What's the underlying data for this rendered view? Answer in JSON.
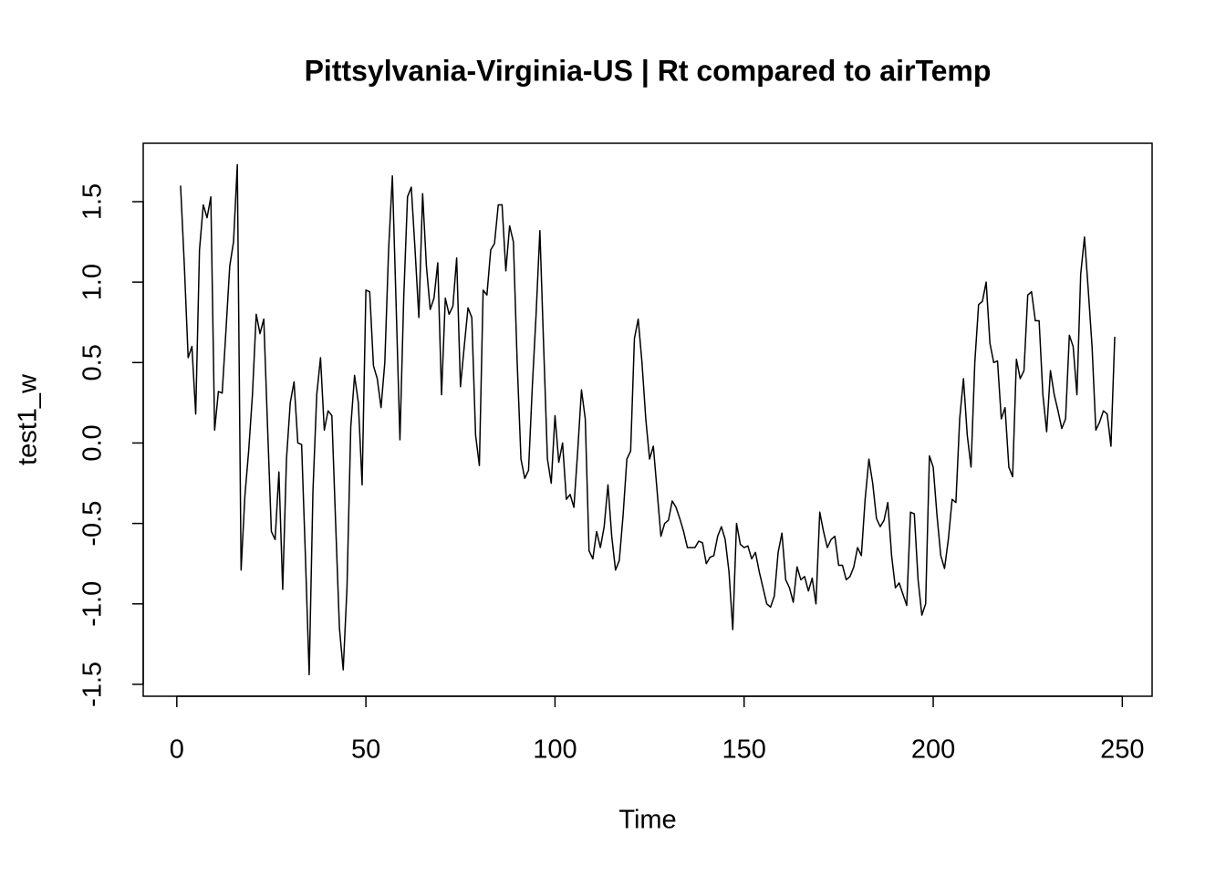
{
  "chart_data": {
    "type": "line",
    "title": "Pittsylvania-Virginia-US | Rt compared to airTemp",
    "x_label": "Time",
    "y_label": "test1_w",
    "x": [
      1,
      2,
      3,
      4,
      5,
      6,
      7,
      8,
      9,
      10,
      11,
      12,
      13,
      14,
      15,
      16,
      17,
      18,
      19,
      20,
      21,
      22,
      23,
      24,
      25,
      26,
      27,
      28,
      29,
      30,
      31,
      32,
      33,
      34,
      35,
      36,
      37,
      38,
      39,
      40,
      41,
      42,
      43,
      44,
      45,
      46,
      47,
      48,
      49,
      50,
      51,
      52,
      53,
      54,
      55,
      56,
      57,
      58,
      59,
      60,
      61,
      62,
      63,
      64,
      65,
      66,
      67,
      68,
      69,
      70,
      71,
      72,
      73,
      74,
      75,
      76,
      77,
      78,
      79,
      80,
      81,
      82,
      83,
      84,
      85,
      86,
      87,
      88,
      89,
      90,
      91,
      92,
      93,
      94,
      95,
      96,
      97,
      98,
      99,
      100,
      101,
      102,
      103,
      104,
      105,
      106,
      107,
      108,
      109,
      110,
      111,
      112,
      113,
      114,
      115,
      116,
      117,
      118,
      119,
      120,
      121,
      122,
      123,
      124,
      125,
      126,
      127,
      128,
      129,
      130,
      131,
      132,
      133,
      134,
      135,
      136,
      137,
      138,
      139,
      140,
      141,
      142,
      143,
      144,
      145,
      146,
      147,
      148,
      149,
      150,
      151,
      152,
      153,
      154,
      155,
      156,
      157,
      158,
      159,
      160,
      161,
      162,
      163,
      164,
      165,
      166,
      167,
      168,
      169,
      170,
      171,
      172,
      173,
      174,
      175,
      176,
      177,
      178,
      179,
      180,
      181,
      182,
      183,
      184,
      185,
      186,
      187,
      188,
      189,
      190,
      191,
      192,
      193,
      194,
      195,
      196,
      197,
      198,
      199,
      200,
      201,
      202,
      203,
      204,
      205,
      206,
      207,
      208,
      209,
      210,
      211,
      212,
      213,
      214,
      215,
      216,
      217,
      218,
      219,
      220,
      221,
      222,
      223,
      224,
      225,
      226,
      227,
      228,
      229,
      230,
      231,
      232,
      233,
      234,
      235,
      236,
      237,
      238,
      239,
      240,
      241,
      242,
      243,
      244,
      245,
      246,
      247,
      248
    ],
    "series": [
      {
        "name": "test1_w",
        "color": "#000000",
        "values": [
          1.6,
          1.1,
          0.53,
          0.6,
          0.18,
          1.2,
          1.48,
          1.4,
          1.53,
          0.08,
          0.32,
          0.31,
          0.7,
          1.1,
          1.25,
          1.73,
          -0.79,
          -0.33,
          -0.05,
          0.3,
          0.8,
          0.68,
          0.77,
          0.1,
          -0.55,
          -0.6,
          -0.18,
          -0.91,
          -0.1,
          0.25,
          0.38,
          0.0,
          -0.01,
          -0.7,
          -1.44,
          -0.3,
          0.3,
          0.53,
          0.08,
          0.2,
          0.17,
          -0.5,
          -1.15,
          -1.41,
          -0.9,
          0.1,
          0.42,
          0.25,
          -0.26,
          0.95,
          0.94,
          0.48,
          0.4,
          0.22,
          0.5,
          1.2,
          1.66,
          0.85,
          0.02,
          0.9,
          1.53,
          1.59,
          1.2,
          0.78,
          1.55,
          1.1,
          0.83,
          0.9,
          1.12,
          0.3,
          0.9,
          0.8,
          0.85,
          1.15,
          0.35,
          0.6,
          0.84,
          0.78,
          0.05,
          -0.14,
          0.95,
          0.92,
          1.2,
          1.24,
          1.48,
          1.48,
          1.07,
          1.35,
          1.25,
          0.5,
          -0.1,
          -0.22,
          -0.17,
          0.35,
          0.8,
          1.32,
          0.6,
          -0.1,
          -0.25,
          0.17,
          -0.12,
          0.0,
          -0.35,
          -0.32,
          -0.4,
          -0.05,
          0.33,
          0.15,
          -0.67,
          -0.72,
          -0.55,
          -0.65,
          -0.52,
          -0.26,
          -0.58,
          -0.79,
          -0.73,
          -0.45,
          -0.1,
          -0.05,
          0.65,
          0.77,
          0.5,
          0.15,
          -0.1,
          -0.02,
          -0.3,
          -0.58,
          -0.5,
          -0.48,
          -0.36,
          -0.4,
          -0.47,
          -0.55,
          -0.65,
          -0.65,
          -0.65,
          -0.61,
          -0.62,
          -0.75,
          -0.71,
          -0.7,
          -0.58,
          -0.52,
          -0.6,
          -0.8,
          -1.16,
          -0.5,
          -0.63,
          -0.65,
          -0.64,
          -0.72,
          -0.68,
          -0.8,
          -0.9,
          -1.0,
          -1.02,
          -0.95,
          -0.68,
          -0.56,
          -0.85,
          -0.9,
          -0.99,
          -0.77,
          -0.85,
          -0.83,
          -0.92,
          -0.84,
          -1.0,
          -0.43,
          -0.55,
          -0.65,
          -0.6,
          -0.58,
          -0.76,
          -0.76,
          -0.85,
          -0.83,
          -0.77,
          -0.65,
          -0.7,
          -0.35,
          -0.1,
          -0.25,
          -0.47,
          -0.52,
          -0.48,
          -0.37,
          -0.7,
          -0.9,
          -0.87,
          -0.94,
          -1.01,
          -0.43,
          -0.44,
          -0.85,
          -1.07,
          -1.0,
          -0.08,
          -0.15,
          -0.45,
          -0.7,
          -0.78,
          -0.6,
          -0.35,
          -0.37,
          0.15,
          0.4,
          0.05,
          -0.15,
          0.5,
          0.86,
          0.88,
          1.0,
          0.62,
          0.5,
          0.51,
          0.15,
          0.22,
          -0.15,
          -0.21,
          0.52,
          0.4,
          0.45,
          0.92,
          0.94,
          0.76,
          0.76,
          0.3,
          0.07,
          0.45,
          0.3,
          0.2,
          0.09,
          0.15,
          0.67,
          0.6,
          0.3,
          1.05,
          1.28,
          0.95,
          0.6,
          0.08,
          0.13,
          0.2,
          0.18,
          -0.02,
          0.66
        ]
      }
    ],
    "xlim": [
      -8.88,
      257.88
    ],
    "ylim": [
      -1.574,
      1.863
    ],
    "xticks": [
      0,
      50,
      100,
      150,
      200,
      250
    ],
    "yticks": [
      -1.5,
      {
        "value": -1,
        "label": "-1.0"
      },
      -0.5,
      {
        "value": 0,
        "label": "0.0"
      },
      0.5,
      {
        "value": 1,
        "label": "1.0"
      },
      1.5
    ],
    "grid": false
  }
}
